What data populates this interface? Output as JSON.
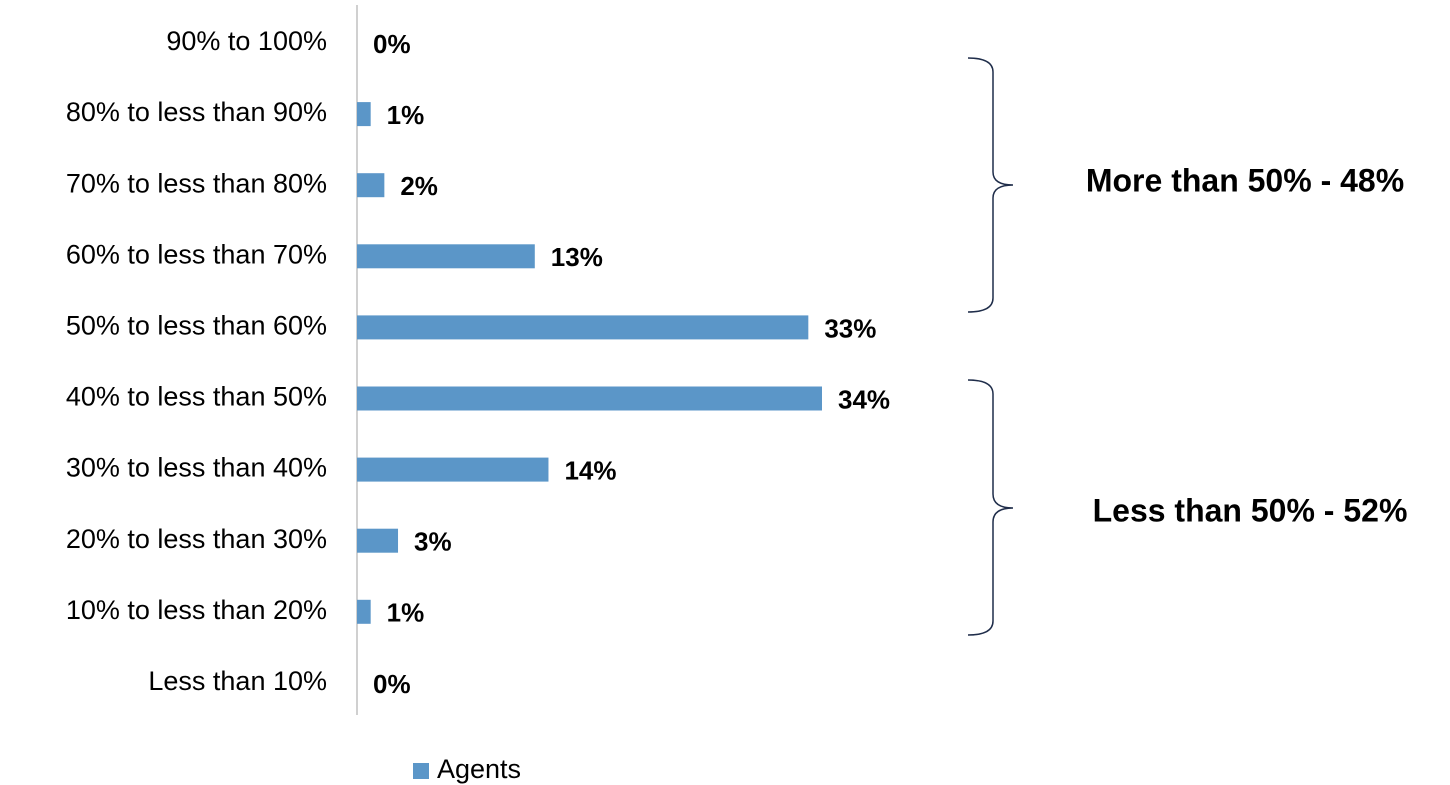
{
  "chart_data": {
    "type": "bar",
    "categories": [
      "90% to 100%",
      "80% to less than 90%",
      "70% to less than 80%",
      "60% to less than 70%",
      "50% to less than 60%",
      "40% to less than 50%",
      "30% to less than 40%",
      "20% to less than 30%",
      "10% to less than 20%",
      "Less than 10%"
    ],
    "series": [
      {
        "name": "Agents",
        "color": "#5b96c8",
        "values": [
          0,
          1,
          2,
          13,
          33,
          34,
          14,
          3,
          1,
          0
        ],
        "value_labels": [
          "0%",
          "1%",
          "2%",
          "13%",
          "33%",
          "34%",
          "14%",
          "3%",
          "1%",
          "0%"
        ]
      }
    ],
    "annotations": [
      "More than 50% - 48%",
      "Less than 50% - 52%"
    ]
  }
}
